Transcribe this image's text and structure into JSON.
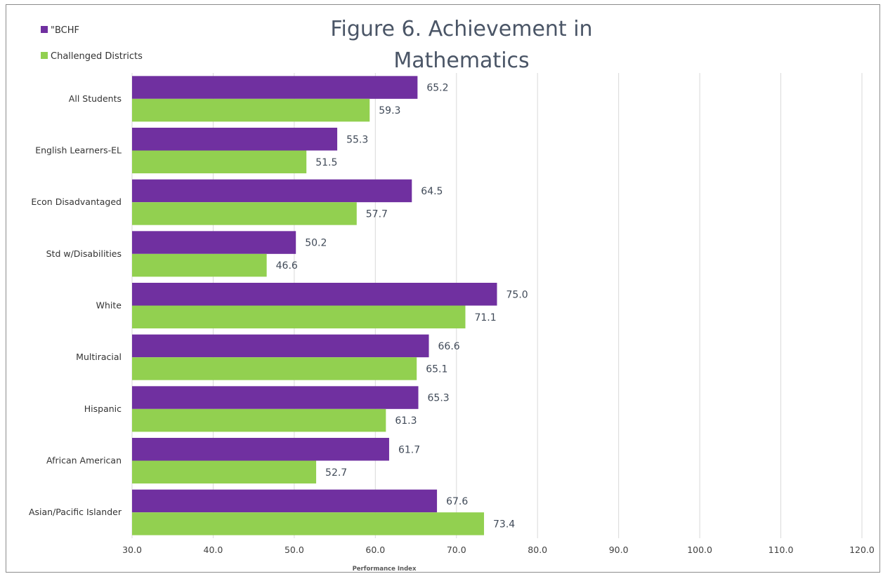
{
  "chart_data": {
    "type": "bar",
    "orientation": "horizontal",
    "title_lines": [
      "Figure 6. Achievement in",
      "Mathematics"
    ],
    "xlabel": "Performance Index",
    "ylabel": "",
    "xlim": [
      30,
      120
    ],
    "x_ticks": [
      "30.0",
      "40.0",
      "50.0",
      "60.0",
      "70.0",
      "80.0",
      "90.0",
      "100.0",
      "110.0",
      "120.0"
    ],
    "categories": [
      "All Students",
      "English Learners-EL",
      "Econ Disadvantaged",
      "Std w/Disabilities",
      "White",
      "Multiracial",
      "Hispanic",
      "African American",
      "Asian/Pacific Islander"
    ],
    "series": [
      {
        "name": "\"BCHF",
        "color": "#7030a0",
        "values": [
          65.2,
          55.3,
          64.5,
          50.2,
          75.0,
          66.6,
          65.3,
          61.7,
          67.6
        ],
        "labels": [
          "65.2",
          "55.3",
          "64.5",
          "50.2",
          "75.0",
          "66.6",
          "65.3",
          "61.7",
          "67.6"
        ]
      },
      {
        "name": "Challenged Districts",
        "color": "#92d050",
        "values": [
          59.3,
          51.5,
          57.7,
          46.6,
          71.1,
          65.1,
          61.3,
          52.7,
          73.4
        ],
        "labels": [
          "59.3",
          "51.5",
          "57.7",
          "46.6",
          "71.1",
          "65.1",
          "61.3",
          "52.7",
          "73.4"
        ]
      }
    ],
    "grid": true,
    "gridline_color": "#d9d9d9",
    "legend_position": "top-left"
  }
}
